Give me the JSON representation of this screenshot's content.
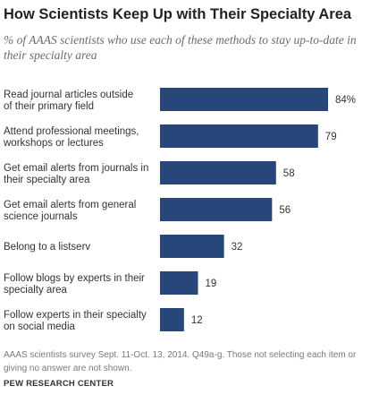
{
  "chart_data": {
    "type": "bar",
    "orientation": "horizontal",
    "title": "How Scientists Keep Up with Their Specialty Area",
    "subtitle": "% of AAAS scientists who use each of these methods to stay up-to-date in their specialty area",
    "categories": [
      [
        "Read journal articles outside",
        "of their primary field"
      ],
      [
        "Attend professional meetings,",
        "workshops or lectures"
      ],
      [
        "Get email alerts from journals in",
        "their specialty area"
      ],
      [
        "Get email alerts from general",
        "science journals"
      ],
      [
        "Belong to a listserv"
      ],
      [
        "Follow blogs by experts in their",
        "specialty area"
      ],
      [
        "Follow experts in their specialty",
        "on social media"
      ]
    ],
    "values": [
      84,
      79,
      58,
      56,
      32,
      19,
      12
    ],
    "value_labels": [
      "84%",
      "79",
      "58",
      "56",
      "32",
      "19",
      "12"
    ],
    "bar_color": "#27467a",
    "xlim": [
      0,
      100
    ],
    "grid": false,
    "legend": "none"
  },
  "note": "AAAS scientists survey Sept. 11-Oct. 13, 2014. Q49a-g. Those not selecting each item or giving no answer are not shown.",
  "source": "PEW RESEARCH CENTER"
}
